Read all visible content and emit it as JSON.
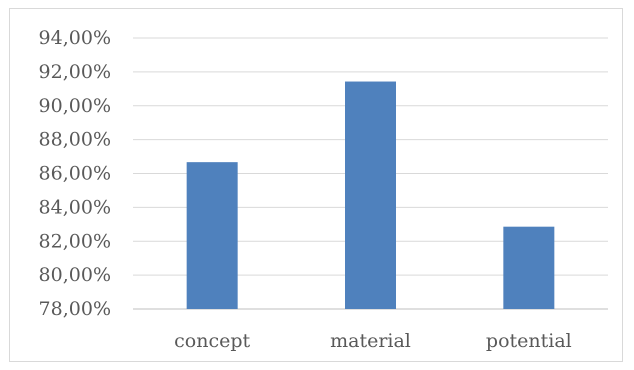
{
  "chart_data": {
    "type": "bar",
    "categories": [
      "concept",
      "material",
      "potential"
    ],
    "values": [
      86.67,
      91.43,
      82.86
    ],
    "ylim": [
      78,
      94
    ],
    "yticks": [
      78,
      80,
      82,
      84,
      86,
      88,
      90,
      92,
      94
    ],
    "ytick_labels": [
      "78,00%",
      "80,00%",
      "82,00%",
      "84,00%",
      "86,00%",
      "88,00%",
      "90,00%",
      "92,00%",
      "94,00%"
    ],
    "grid": true,
    "bar_color": "#4f81bd",
    "title": "",
    "xlabel": "",
    "ylabel": ""
  }
}
